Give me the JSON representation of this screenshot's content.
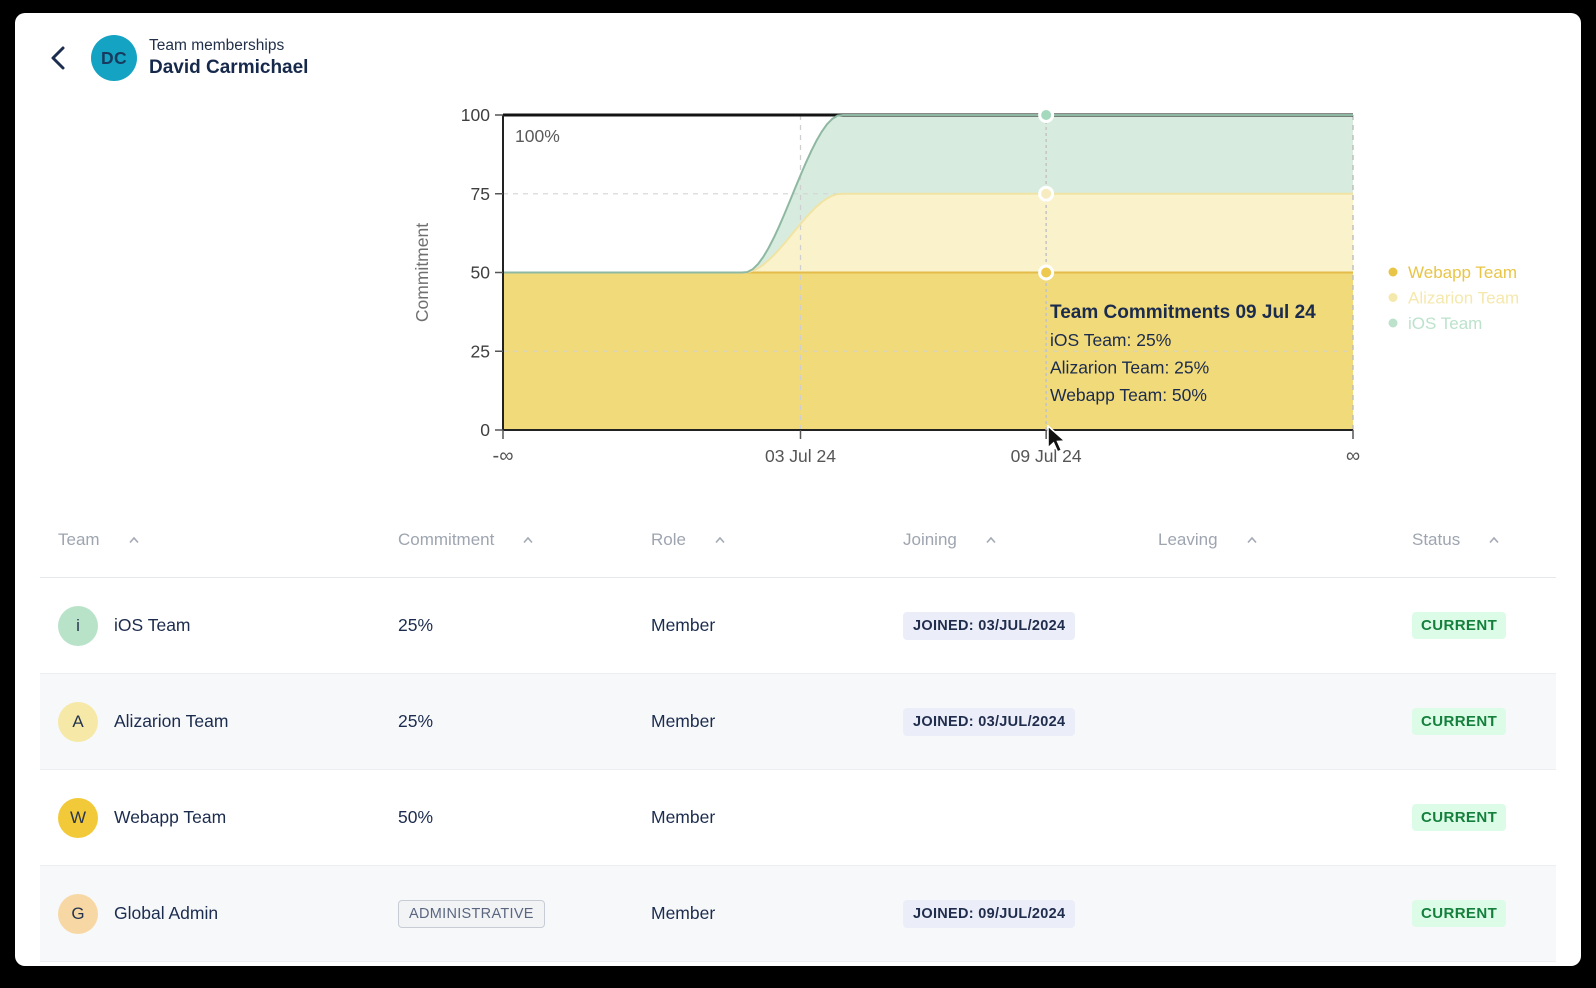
{
  "header": {
    "subtitle": "Team memberships",
    "title": "David Carmichael",
    "avatar_initials": "DC",
    "avatar_color": "#14A3C2"
  },
  "chart_data": {
    "type": "area",
    "stacked": true,
    "title": "",
    "xlabel": "",
    "ylabel": "Commitment",
    "y_max": 100,
    "y_ticks": [
      0,
      25,
      50,
      75,
      100
    ],
    "grid": true,
    "annotation": "100%",
    "max_line_value": 100,
    "x_ticks": [
      {
        "label": "-∞",
        "pos": 0
      },
      {
        "label": "03 Jul 24",
        "pos": 0.35
      },
      {
        "label": "09 Jul 24",
        "pos": 0.639
      },
      {
        "label": "∞",
        "pos": 1
      }
    ],
    "transition": {
      "start": 0.284,
      "end": 0.398
    },
    "series": [
      {
        "name": "Webapp Team",
        "before": 50,
        "after": 50,
        "fill": "#F1DA7A",
        "stroke": "#E3BC4B",
        "dot": "#EDC94F"
      },
      {
        "name": "Alizarion Team",
        "before": 0,
        "after": 25,
        "fill": "#FAF2CB",
        "stroke": "#F0E3A4",
        "dot": "#F6ECC0"
      },
      {
        "name": "iOS Team",
        "before": 0,
        "after": 25,
        "fill": "#D7ECDF",
        "stroke": "#8FB8A2",
        "dot": "#A5D9BD"
      }
    ],
    "hover": {
      "pos": 0.639,
      "title": "Team Commitments 09 Jul 24",
      "lines": [
        "iOS Team: 25%",
        "Alizarion Team: 25%",
        "Webapp Team: 50%"
      ],
      "point_values": [
        100,
        75,
        50
      ]
    },
    "legend": {
      "position": "right",
      "items": [
        {
          "label": "Webapp Team",
          "color": "#E8C547"
        },
        {
          "label": "Alizarion Team",
          "color": "#F5E8AC"
        },
        {
          "label": "iOS Team",
          "color": "#BCE2CC"
        }
      ]
    }
  },
  "table": {
    "columns": [
      "Team",
      "Commitment",
      "Role",
      "Joining",
      "Leaving",
      "Status"
    ],
    "rows": [
      {
        "team": "iOS Team",
        "initial": "i",
        "avatar_color": "#B9E3C9",
        "commitment": "25%",
        "commitment_badge": "",
        "role": "Member",
        "joining": "JOINED: 03/JUL/2024",
        "leaving": "",
        "status": "CURRENT"
      },
      {
        "team": "Alizarion Team",
        "initial": "A",
        "avatar_color": "#F6E8A6",
        "commitment": "25%",
        "commitment_badge": "",
        "role": "Member",
        "joining": "JOINED: 03/JUL/2024",
        "leaving": "",
        "status": "CURRENT"
      },
      {
        "team": "Webapp Team",
        "initial": "W",
        "avatar_color": "#F2C938",
        "commitment": "50%",
        "commitment_badge": "",
        "role": "Member",
        "joining": "",
        "leaving": "",
        "status": "CURRENT"
      },
      {
        "team": "Global Admin",
        "initial": "G",
        "avatar_color": "#F7D8A4",
        "commitment": "",
        "commitment_badge": "ADMINISTRATIVE",
        "role": "Member",
        "joining": "JOINED: 09/JUL/2024",
        "leaving": "",
        "status": "CURRENT"
      }
    ]
  }
}
